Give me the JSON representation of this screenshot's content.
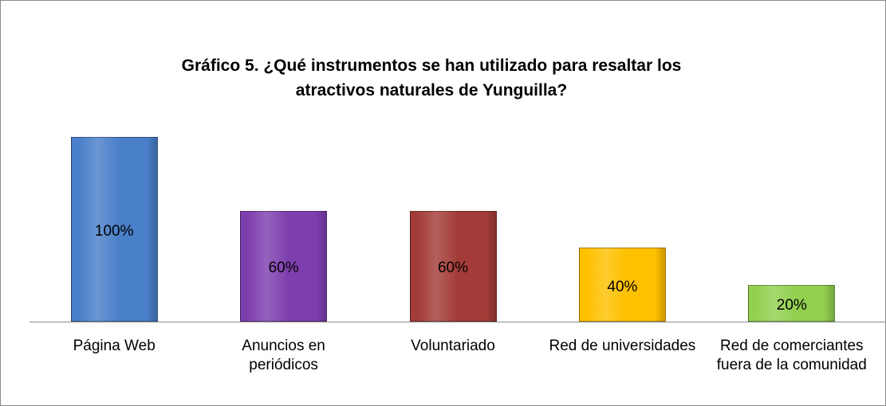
{
  "chart_data": {
    "type": "bar",
    "title": "Gráfico 5. ¿Qué instrumentos se han utilizado para resaltar los atractivos naturales de Yunguilla?",
    "categories": [
      "Página Web",
      "Anuncios en periódicos",
      "Voluntariado",
      "Red de universidades",
      "Red de comerciantes fuera de la comunidad"
    ],
    "values": [
      100,
      60,
      60,
      40,
      20
    ],
    "value_labels": [
      "100%",
      "60%",
      "60%",
      "40%",
      "20%"
    ],
    "colors": [
      "#4a7fc9",
      "#7e3fae",
      "#a33c38",
      "#ffc000",
      "#92d050"
    ]
  }
}
